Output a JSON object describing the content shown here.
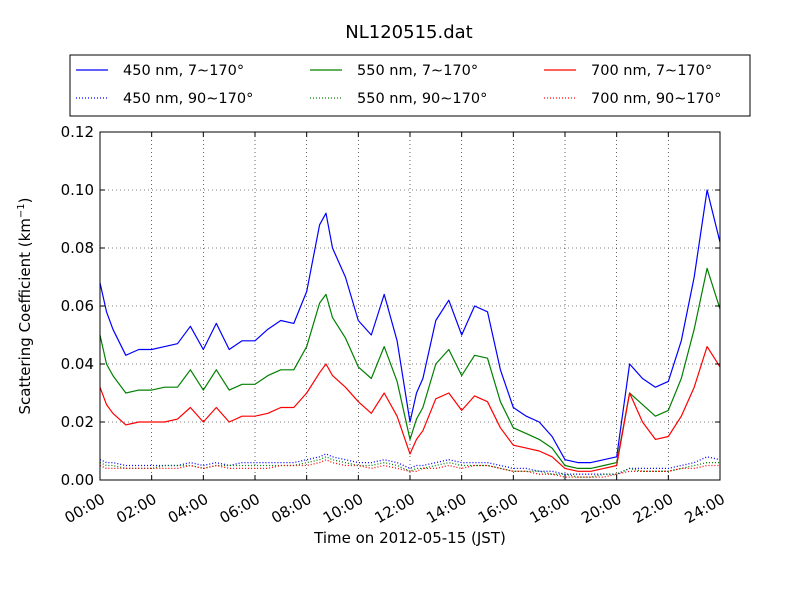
{
  "chart_data": {
    "type": "line",
    "title": "NL120515.dat",
    "xlabel": "Time on 2012-05-15 (JST)",
    "ylabel_main": "Scattering Coefficient (km",
    "ylabel_sup": "−1",
    "ylabel_close": ")",
    "xlim": [
      0,
      24
    ],
    "ylim": [
      0,
      0.12
    ],
    "grid": true,
    "legend_position": "top",
    "x_ticks": [
      {
        "value": 0,
        "label": "00:00"
      },
      {
        "value": 2,
        "label": "02:00"
      },
      {
        "value": 4,
        "label": "04:00"
      },
      {
        "value": 6,
        "label": "06:00"
      },
      {
        "value": 8,
        "label": "08:00"
      },
      {
        "value": 10,
        "label": "10:00"
      },
      {
        "value": 12,
        "label": "12:00"
      },
      {
        "value": 14,
        "label": "14:00"
      },
      {
        "value": 16,
        "label": "16:00"
      },
      {
        "value": 18,
        "label": "18:00"
      },
      {
        "value": 20,
        "label": "20:00"
      },
      {
        "value": 22,
        "label": "22:00"
      },
      {
        "value": 24,
        "label": "24:00"
      }
    ],
    "y_ticks": [
      {
        "value": 0,
        "label": "0.00"
      },
      {
        "value": 0.02,
        "label": "0.02"
      },
      {
        "value": 0.04,
        "label": "0.04"
      },
      {
        "value": 0.06,
        "label": "0.06"
      },
      {
        "value": 0.08,
        "label": "0.08"
      },
      {
        "value": 0.1,
        "label": "0.10"
      },
      {
        "value": 0.12,
        "label": "0.12"
      }
    ],
    "x": [
      0,
      0.25,
      0.5,
      1,
      1.5,
      2,
      2.5,
      3,
      3.5,
      4,
      4.5,
      5,
      5.5,
      6,
      6.5,
      7,
      7.5,
      8,
      8.5,
      8.75,
      9,
      9.5,
      10,
      10.5,
      11,
      11.5,
      12,
      12.25,
      12.5,
      13,
      13.5,
      14,
      14.5,
      15,
      15.5,
      16,
      16.5,
      17,
      17.5,
      18,
      18.5,
      19,
      19.5,
      20,
      20.5,
      21,
      21.5,
      22,
      22.5,
      23,
      23.5,
      24
    ],
    "series": [
      {
        "name": "450 nm, 7∼170°",
        "color": "#0000ff",
        "style": "solid",
        "values": [
          0.068,
          0.058,
          0.052,
          0.043,
          0.045,
          0.045,
          0.046,
          0.047,
          0.053,
          0.045,
          0.054,
          0.045,
          0.048,
          0.048,
          0.052,
          0.055,
          0.054,
          0.065,
          0.088,
          0.092,
          0.08,
          0.07,
          0.055,
          0.05,
          0.064,
          0.048,
          0.02,
          0.03,
          0.035,
          0.055,
          0.062,
          0.05,
          0.06,
          0.058,
          0.038,
          0.025,
          0.022,
          0.02,
          0.015,
          0.007,
          0.006,
          0.006,
          0.007,
          0.008,
          0.04,
          0.035,
          0.032,
          0.034,
          0.048,
          0.07,
          0.1,
          0.082
        ]
      },
      {
        "name": "550 nm, 7∼170°",
        "color": "#008000",
        "style": "solid",
        "values": [
          0.05,
          0.04,
          0.036,
          0.03,
          0.031,
          0.031,
          0.032,
          0.032,
          0.038,
          0.031,
          0.038,
          0.031,
          0.033,
          0.033,
          0.036,
          0.038,
          0.038,
          0.046,
          0.061,
          0.064,
          0.056,
          0.049,
          0.039,
          0.035,
          0.046,
          0.034,
          0.014,
          0.021,
          0.025,
          0.04,
          0.045,
          0.036,
          0.043,
          0.042,
          0.027,
          0.018,
          0.016,
          0.014,
          0.011,
          0.005,
          0.004,
          0.004,
          0.005,
          0.006,
          0.03,
          0.026,
          0.022,
          0.024,
          0.035,
          0.052,
          0.073,
          0.059
        ]
      },
      {
        "name": "700 nm, 7∼170°",
        "color": "#ff0000",
        "style": "solid",
        "values": [
          0.032,
          0.026,
          0.023,
          0.019,
          0.02,
          0.02,
          0.02,
          0.021,
          0.025,
          0.02,
          0.025,
          0.02,
          0.022,
          0.022,
          0.023,
          0.025,
          0.025,
          0.03,
          0.037,
          0.04,
          0.036,
          0.032,
          0.027,
          0.023,
          0.03,
          0.022,
          0.009,
          0.014,
          0.017,
          0.028,
          0.03,
          0.024,
          0.029,
          0.027,
          0.018,
          0.012,
          0.011,
          0.01,
          0.008,
          0.004,
          0.003,
          0.003,
          0.004,
          0.005,
          0.03,
          0.02,
          0.014,
          0.015,
          0.022,
          0.032,
          0.046,
          0.039
        ]
      },
      {
        "name": "450 nm, 90∼170°",
        "color": "#0000ff",
        "style": "dotted",
        "values": [
          0.007,
          0.006,
          0.006,
          0.005,
          0.005,
          0.005,
          0.005,
          0.005,
          0.006,
          0.005,
          0.006,
          0.005,
          0.006,
          0.006,
          0.006,
          0.006,
          0.006,
          0.007,
          0.008,
          0.009,
          0.008,
          0.007,
          0.006,
          0.006,
          0.007,
          0.006,
          0.004,
          0.005,
          0.005,
          0.006,
          0.007,
          0.006,
          0.006,
          0.006,
          0.005,
          0.004,
          0.004,
          0.003,
          0.003,
          0.002,
          0.002,
          0.002,
          0.002,
          0.002,
          0.004,
          0.004,
          0.004,
          0.004,
          0.005,
          0.006,
          0.008,
          0.007
        ]
      },
      {
        "name": "550 nm, 90∼170°",
        "color": "#008000",
        "style": "dotted",
        "values": [
          0.006,
          0.005,
          0.005,
          0.004,
          0.004,
          0.004,
          0.005,
          0.005,
          0.005,
          0.004,
          0.005,
          0.005,
          0.005,
          0.005,
          0.005,
          0.005,
          0.005,
          0.006,
          0.007,
          0.008,
          0.007,
          0.006,
          0.005,
          0.005,
          0.006,
          0.005,
          0.003,
          0.004,
          0.004,
          0.005,
          0.006,
          0.005,
          0.005,
          0.005,
          0.004,
          0.003,
          0.003,
          0.003,
          0.002,
          0.002,
          0.001,
          0.001,
          0.002,
          0.002,
          0.004,
          0.003,
          0.003,
          0.003,
          0.004,
          0.005,
          0.006,
          0.006
        ]
      },
      {
        "name": "700 nm, 90∼170°",
        "color": "#ff0000",
        "style": "dotted",
        "values": [
          0.005,
          0.004,
          0.004,
          0.004,
          0.004,
          0.004,
          0.004,
          0.004,
          0.005,
          0.004,
          0.005,
          0.004,
          0.004,
          0.004,
          0.004,
          0.005,
          0.005,
          0.005,
          0.006,
          0.007,
          0.006,
          0.005,
          0.005,
          0.004,
          0.005,
          0.004,
          0.003,
          0.003,
          0.004,
          0.004,
          0.005,
          0.004,
          0.005,
          0.005,
          0.004,
          0.003,
          0.003,
          0.002,
          0.002,
          0.001,
          0.001,
          0.001,
          0.001,
          0.002,
          0.003,
          0.003,
          0.003,
          0.003,
          0.004,
          0.004,
          0.005,
          0.005
        ]
      }
    ]
  }
}
